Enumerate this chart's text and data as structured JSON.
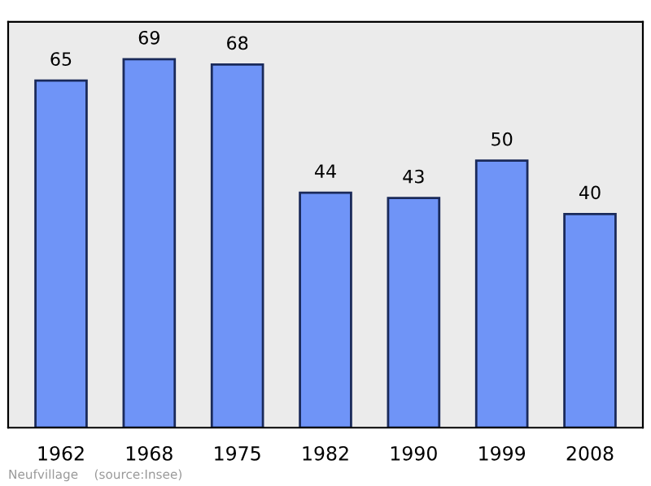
{
  "chart_data": {
    "type": "bar",
    "categories": [
      "1962",
      "1968",
      "1975",
      "1982",
      "1990",
      "1999",
      "2008"
    ],
    "values": [
      65,
      69,
      68,
      44,
      43,
      50,
      40
    ],
    "color": "#6f94f7",
    "ylim": [
      0,
      76
    ],
    "tick_labels": "x",
    "data_labels": true,
    "grid": false,
    "annotations": [
      "Neufvillage    (source:Insee)"
    ]
  }
}
